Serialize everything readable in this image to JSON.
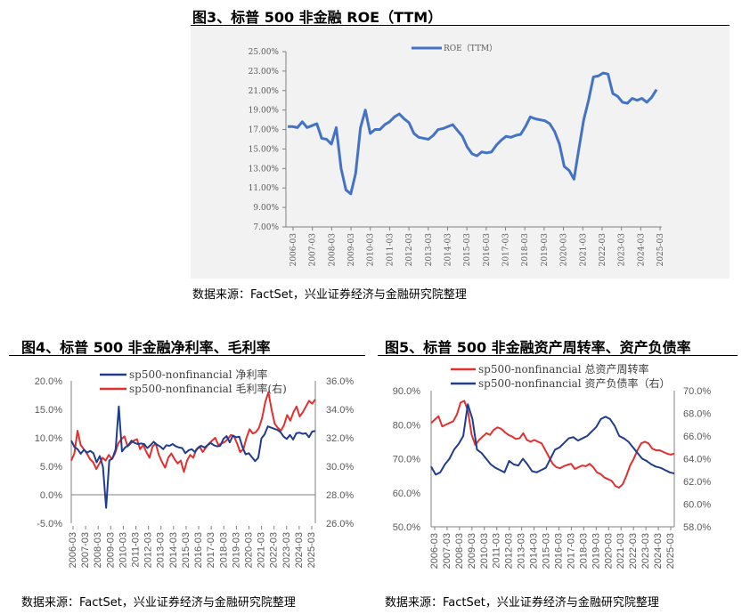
{
  "figures": [
    {
      "title": "图3、标普 500 非金融 ROE（TTM）",
      "source": "数据来源：FactSet，兴业证券经济与金融研究院整理"
    },
    {
      "title": "图4、标普 500 非金融净利率、毛利率",
      "source": "数据来源：FactSet，兴业证券经济与金融研究院整理"
    },
    {
      "title": "图5、标普 500 非金融资产周转率、资产负债率",
      "source": "数据来源：FactSet，兴业证券经济与金融研究院整理"
    }
  ],
  "colors": {
    "blue": "#4472c4",
    "navy": "#1f3d8c",
    "red": "#e03030"
  },
  "chart_data": [
    {
      "type": "line",
      "x_ticks": [
        "2006-03",
        "2007-03",
        "2008-03",
        "2009-03",
        "2010-03",
        "2011-03",
        "2012-03",
        "2013-03",
        "2014-03",
        "2015-03",
        "2016-03",
        "2017-03",
        "2018-03",
        "2019-03",
        "2020-03",
        "2021-03",
        "2022-03",
        "2023-03",
        "2024-03",
        "2025-03"
      ],
      "y_ticks": [
        "25.00%",
        "23.00%",
        "21.00%",
        "19.00%",
        "17.00%",
        "15.00%",
        "13.00%",
        "11.00%",
        "9.00%",
        "7.00%"
      ],
      "ylim": [
        7,
        25
      ],
      "grid": false,
      "legend": "top-left",
      "series": [
        {
          "name": "ROE（TTM）",
          "values": [
            17.3,
            17.3,
            17.2,
            17.8,
            17.2,
            17.4,
            17.6,
            16.1,
            16.0,
            15.5,
            17.2,
            13.0,
            10.8,
            10.4,
            12.5,
            17.2,
            19.0,
            16.6,
            17.0,
            17.0,
            17.5,
            17.8,
            18.3,
            18.6,
            18.1,
            17.7,
            16.6,
            16.2,
            16.1,
            16.0,
            16.4,
            17.0,
            17.1,
            17.3,
            17.5,
            16.9,
            16.3,
            15.2,
            14.5,
            14.3,
            14.7,
            14.6,
            14.7,
            15.4,
            15.9,
            16.3,
            16.2,
            16.4,
            16.5,
            17.3,
            18.3,
            18.1,
            18.0,
            17.9,
            17.6,
            16.8,
            15.5,
            13.2,
            12.8,
            11.9,
            15.0,
            18.0,
            20.0,
            22.4,
            22.5,
            22.8,
            22.7,
            20.7,
            20.4,
            19.8,
            19.7,
            20.2,
            20.0,
            20.2,
            19.8,
            20.3,
            21.1
          ]
        }
      ]
    },
    {
      "type": "line",
      "x_ticks": [
        "2006-03",
        "2007-03",
        "2008-03",
        "2009-03",
        "2010-03",
        "2011-03",
        "2012-03",
        "2013-03",
        "2014-03",
        "2015-03",
        "2016-03",
        "2017-03",
        "2018-03",
        "2019-03",
        "2020-03",
        "2021-03",
        "2022-03",
        "2023-03",
        "2024-03",
        "2025-03"
      ],
      "y_ticks": [
        "20.0%",
        "15.0%",
        "10.0%",
        "5.0%",
        "0.0%",
        "-5.0%"
      ],
      "y2_ticks": [
        "36.0%",
        "34.0%",
        "32.0%",
        "30.0%",
        "28.0%",
        "26.0%"
      ],
      "ylim": [
        -5,
        20
      ],
      "y2lim": [
        26,
        36
      ],
      "grid": false,
      "legend": "top",
      "series": [
        {
          "name": "sp500-nonfinancial 净利率",
          "axis": "left",
          "values": [
            9.5,
            8.4,
            8.0,
            7.2,
            7.9,
            7.4,
            7.7,
            7.3,
            5.7,
            6.8,
            4.9,
            -2.3,
            6.0,
            6.4,
            8.0,
            15.5,
            7.6,
            8.3,
            8.7,
            9.5,
            9.1,
            8.9,
            9.0,
            8.9,
            8.2,
            8.7,
            9.3,
            8.8,
            8.5,
            8.0,
            8.7,
            8.6,
            8.9,
            8.5,
            8.3,
            8.2,
            7.3,
            7.8,
            8.0,
            7.5,
            8.2,
            8.6,
            8.3,
            8.7,
            9.1,
            8.7,
            8.5,
            8.6,
            9.8,
            10.3,
            9.2,
            10.4,
            10.1,
            10.2,
            8.4,
            7.1,
            7.3,
            6.6,
            5.9,
            6.5,
            9.9,
            10.6,
            12.0,
            11.8,
            11.6,
            11.4,
            11.0,
            10.2,
            9.8,
            10.5,
            9.7,
            10.8,
            10.9,
            10.7,
            10.8,
            10.1,
            11.1,
            11.2
          ]
        },
        {
          "name": "sp500-nonfinancial 毛利率(右)",
          "axis": "right",
          "values": [
            30.4,
            30.9,
            32.5,
            31.5,
            31.2,
            30.9,
            30.5,
            30.3,
            29.8,
            30.2,
            30.6,
            30.4,
            30.8,
            30.5,
            30.9,
            31.6,
            31.9,
            32.1,
            31.4,
            31.6,
            31.8,
            31.9,
            31.2,
            31.5,
            31.0,
            30.6,
            31.4,
            31.6,
            30.8,
            30.3,
            29.9,
            30.6,
            30.9,
            30.5,
            30.2,
            30.4,
            29.6,
            30.4,
            30.8,
            30.6,
            31.2,
            31.4,
            31.0,
            31.3,
            31.6,
            31.8,
            32.0,
            31.5,
            31.6,
            31.7,
            31.9,
            32.2,
            32.1,
            31.6,
            31.0,
            31.2,
            32.0,
            32.6,
            32.3,
            32.4,
            32.7,
            33.4,
            34.5,
            35.2,
            34.0,
            33.0,
            32.7,
            32.5,
            32.9,
            33.6,
            33.2,
            33.8,
            34.2,
            33.5,
            33.8,
            34.2,
            34.6,
            34.4,
            34.7
          ]
        }
      ]
    },
    {
      "type": "line",
      "x_ticks": [
        "2006-03",
        "2007-03",
        "2008-03",
        "2009-03",
        "2010-03",
        "2011-03",
        "2012-03",
        "2013-03",
        "2014-03",
        "2015-03",
        "2016-03",
        "2017-03",
        "2018-03",
        "2019-03",
        "2020-03",
        "2021-03",
        "2022-03",
        "2023-03",
        "2024-03",
        "2025-03"
      ],
      "y_ticks": [
        "90.0%",
        "80.0%",
        "70.0%",
        "60.0%",
        "50.0%"
      ],
      "y2_ticks": [
        "70.0%",
        "68.0%",
        "66.0%",
        "64.0%",
        "62.0%",
        "60.0%",
        "58.0%"
      ],
      "ylim": [
        50,
        90
      ],
      "y2lim": [
        58,
        70
      ],
      "grid": false,
      "legend": "top",
      "series": [
        {
          "name": "sp500-nonfinancial 总资产周转率",
          "axis": "left",
          "values": [
            80.5,
            81.5,
            82.5,
            79.5,
            80.0,
            80.5,
            81.0,
            83.0,
            86.5,
            87.0,
            84.0,
            77.0,
            74.0,
            75.5,
            76.5,
            77.5,
            77.0,
            78.5,
            79.2,
            78.8,
            77.8,
            77.0,
            76.5,
            75.8,
            76.0,
            77.5,
            75.5,
            75.0,
            75.5,
            75.0,
            74.5,
            72.5,
            70.5,
            68.5,
            67.5,
            67.2,
            67.8,
            68.2,
            68.5,
            67.0,
            67.5,
            68.0,
            67.8,
            68.5,
            67.5,
            66.0,
            65.5,
            64.5,
            64.0,
            63.5,
            62.0,
            61.5,
            62.5,
            65.0,
            68.0,
            70.0,
            72.5,
            74.5,
            75.0,
            74.5,
            73.0,
            72.5,
            72.5,
            72.0,
            71.5,
            71.2,
            71.5
          ]
        },
        {
          "name": "sp500-nonfinancial 资产负债率（右）",
          "axis": "right",
          "values": [
            63.3,
            62.6,
            62.8,
            63.5,
            64.0,
            64.8,
            65.3,
            66.0,
            68.8,
            67.5,
            64.8,
            64.5,
            64.0,
            63.5,
            63.2,
            63.0,
            62.8,
            63.8,
            63.5,
            63.4,
            64.0,
            63.5,
            62.9,
            62.8,
            63.0,
            63.2,
            64.0,
            64.8,
            65.0,
            65.4,
            65.8,
            65.9,
            65.6,
            65.8,
            66.0,
            66.4,
            66.8,
            67.5,
            67.7,
            67.5,
            66.9,
            66.0,
            65.8,
            65.5,
            65.0,
            64.5,
            64.0,
            63.8,
            63.5,
            63.3,
            63.2,
            63.0,
            62.8,
            62.7
          ]
        }
      ]
    }
  ]
}
